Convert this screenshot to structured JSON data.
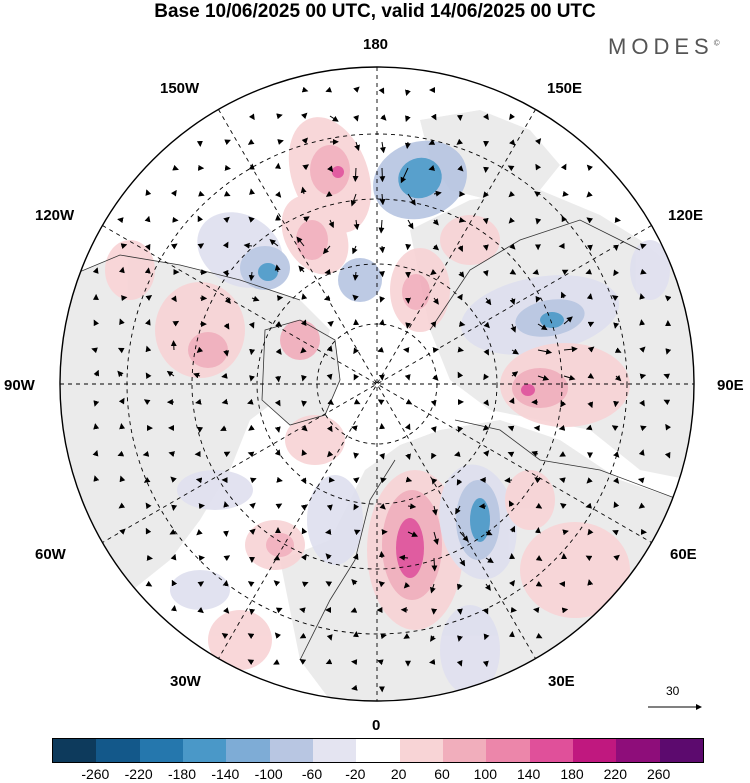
{
  "title": "Base 10/06/2025 00 UTC, valid 14/06/2025 00 UTC",
  "brand": "MODES",
  "brand_mark": "©",
  "longitude_labels": {
    "lon_180": "180",
    "lon_150W": "150W",
    "lon_150E": "150E",
    "lon_120W": "120W",
    "lon_120E": "120E",
    "lon_90W": "90W",
    "lon_90E": "90E",
    "lon_60W": "60W",
    "lon_60E": "60E",
    "lon_30W": "30W",
    "lon_30E": "30E",
    "lon_0": "0"
  },
  "vector_scale": {
    "label": "30",
    "value": 30
  },
  "colorbar": {
    "ticks": [
      "-260",
      "-220",
      "-180",
      "-140",
      "-100",
      "-60",
      "-20",
      "20",
      "60",
      "100",
      "140",
      "180",
      "220",
      "260"
    ],
    "colors": [
      "#0d3a5c",
      "#13588a",
      "#2577ad",
      "#4a98c8",
      "#7eacd6",
      "#b8c6e2",
      "#e4e4f1",
      "#ffffff",
      "#f8d4d6",
      "#f1aebc",
      "#ec86aa",
      "#e0509a",
      "#c0187f",
      "#8e0d7a",
      "#5c0a6e"
    ]
  },
  "map_colors": {
    "land": "#ebebeb",
    "coast": "#333333",
    "positive_weak": "#f8d4d6",
    "positive_mid": "#f1aebc",
    "positive_strong": "#e0509a",
    "negative_weak": "#dfe0ef",
    "negative_mid": "#b8c6e2",
    "negative_strong": "#4a98c8"
  }
}
